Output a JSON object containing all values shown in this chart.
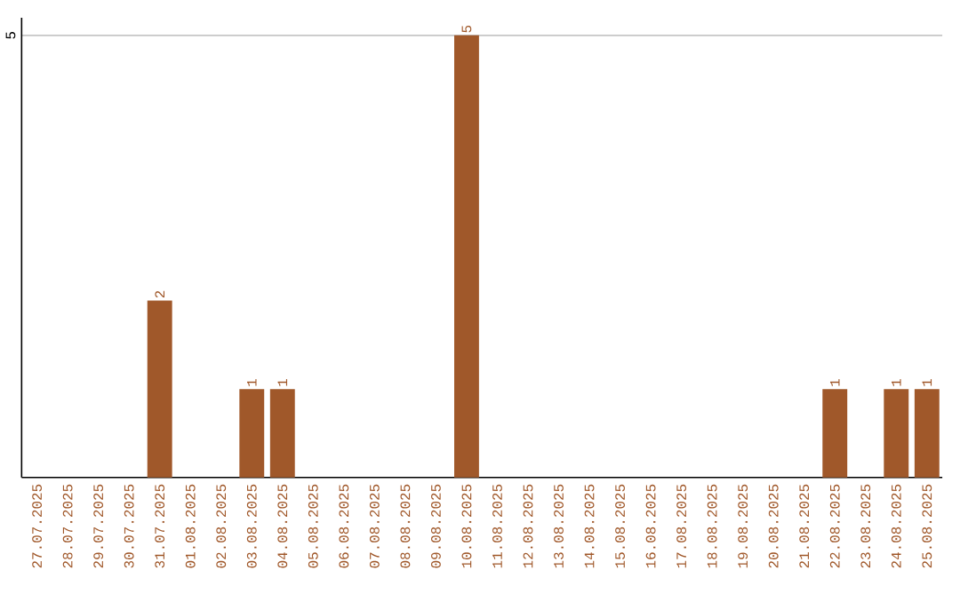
{
  "chart_data": {
    "type": "bar",
    "categories": [
      "27.07.2025",
      "28.07.2025",
      "29.07.2025",
      "30.07.2025",
      "31.07.2025",
      "01.08.2025",
      "02.08.2025",
      "03.08.2025",
      "04.08.2025",
      "05.08.2025",
      "06.08.2025",
      "07.08.2025",
      "08.08.2025",
      "09.08.2025",
      "10.08.2025",
      "11.08.2025",
      "12.08.2025",
      "13.08.2025",
      "14.08.2025",
      "15.08.2025",
      "16.08.2025",
      "17.08.2025",
      "18.08.2025",
      "19.08.2025",
      "20.08.2025",
      "21.08.2025",
      "22.08.2025",
      "23.08.2025",
      "24.08.2025",
      "25.08.2025"
    ],
    "values": [
      0,
      0,
      0,
      0,
      2,
      0,
      0,
      1,
      1,
      0,
      0,
      0,
      0,
      0,
      5,
      0,
      0,
      0,
      0,
      0,
      0,
      0,
      0,
      0,
      0,
      0,
      1,
      0,
      1,
      1
    ],
    "value_labels": [
      null,
      null,
      null,
      null,
      "2",
      null,
      null,
      "1",
      "1",
      null,
      null,
      null,
      null,
      null,
      "5",
      null,
      null,
      null,
      null,
      null,
      null,
      null,
      null,
      null,
      null,
      null,
      "1",
      null,
      "1",
      "1"
    ],
    "color": "#a0582a",
    "ylim": [
      0,
      5.2
    ],
    "yticks": [
      5
    ],
    "grid": "y"
  }
}
